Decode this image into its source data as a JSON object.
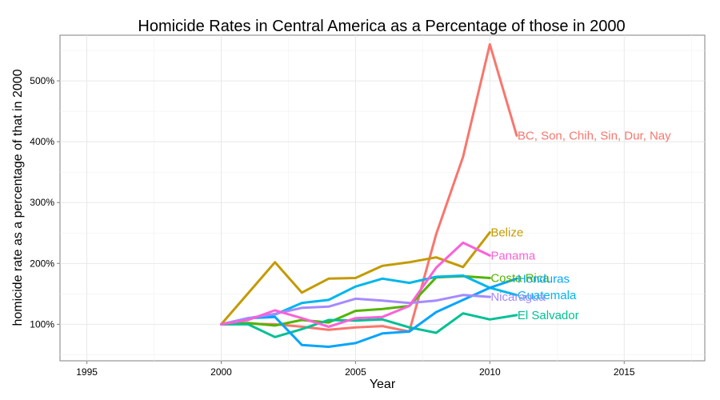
{
  "chart_data": {
    "type": "line",
    "title": "Homicide Rates in Central America as a Percentage of those in 2000",
    "xlabel": "Year",
    "ylabel": "homicide rate as a percentage of that in 2000",
    "xlim": [
      1994,
      2018
    ],
    "ylim": [
      40,
      575
    ],
    "xticks": [
      1995,
      2000,
      2005,
      2010,
      2015
    ],
    "yticks": [
      100,
      200,
      300,
      400,
      500
    ],
    "ytick_labels": [
      "100%",
      "200%",
      "300%",
      "400%",
      "500%"
    ],
    "grid": true,
    "legend": "direct labels at line ends",
    "series": [
      {
        "name": "BC, Son, Chih, Sin, Dur, Nay",
        "color": "#F8766D",
        "x": [
          2000,
          2001,
          2002,
          2003,
          2004,
          2005,
          2006,
          2007,
          2008,
          2009,
          2010,
          2011
        ],
        "y": [
          100,
          101,
          100,
          96,
          91,
          95,
          97,
          88,
          248,
          375,
          560,
          410
        ]
      },
      {
        "name": "Belize",
        "color": "#C49A00",
        "x": [
          2000,
          2001,
          2002,
          2003,
          2004,
          2005,
          2006,
          2007,
          2008,
          2009,
          2010
        ],
        "y": [
          100,
          151,
          202,
          152,
          175,
          176,
          196,
          202,
          210,
          194,
          251
        ]
      },
      {
        "name": "Costa Rica",
        "color": "#53B400",
        "x": [
          2000,
          2001,
          2002,
          2003,
          2004,
          2005,
          2006,
          2007,
          2008,
          2009,
          2010
        ],
        "y": [
          100,
          102,
          98,
          107,
          103,
          122,
          125,
          130,
          177,
          179,
          176
        ]
      },
      {
        "name": "El Salvador",
        "color": "#00C094",
        "x": [
          2000,
          2001,
          2002,
          2003,
          2004,
          2005,
          2006,
          2007,
          2008,
          2009,
          2010,
          2011
        ],
        "y": [
          100,
          100,
          79,
          92,
          107,
          106,
          108,
          95,
          86,
          118,
          108,
          115
        ]
      },
      {
        "name": "Guatemala",
        "color": "#00B6EB",
        "x": [
          2000,
          2001,
          2002,
          2003,
          2004,
          2005,
          2006,
          2007,
          2008,
          2009,
          2010,
          2011
        ],
        "y": [
          100,
          110,
          116,
          135,
          140,
          162,
          175,
          168,
          178,
          180,
          160,
          148
        ]
      },
      {
        "name": "Honduras",
        "color": "#06A4FF",
        "x": [
          2000,
          2001,
          2002,
          2003,
          2004,
          2005,
          2006,
          2007,
          2008,
          2009,
          2010,
          2011
        ],
        "y": [
          100,
          110,
          112,
          66,
          63,
          69,
          85,
          88,
          120,
          140,
          160,
          175
        ]
      },
      {
        "name": "Nicaragua",
        "color": "#A58AFF",
        "x": [
          2000,
          2001,
          2002,
          2003,
          2004,
          2005,
          2006,
          2007,
          2008,
          2009,
          2010
        ],
        "y": [
          100,
          110,
          117,
          127,
          129,
          142,
          139,
          135,
          139,
          148,
          145
        ]
      },
      {
        "name": "Panama",
        "color": "#FB61D7",
        "x": [
          2000,
          2001,
          2002,
          2003,
          2004,
          2005,
          2006,
          2007,
          2008,
          2009,
          2010
        ],
        "y": [
          100,
          107,
          123,
          110,
          96,
          110,
          112,
          130,
          193,
          234,
          213
        ]
      }
    ]
  }
}
